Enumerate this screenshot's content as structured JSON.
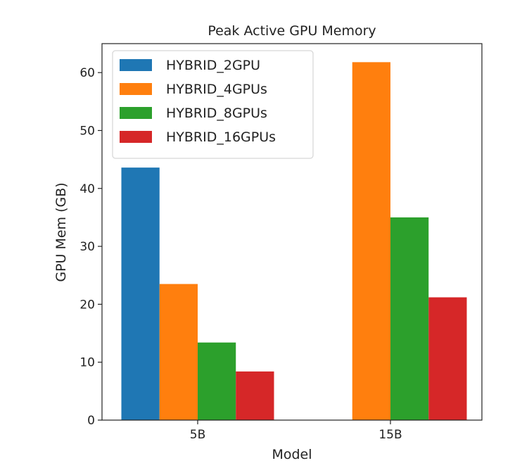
{
  "chart_data": {
    "type": "bar",
    "title": "Peak Active GPU Memory",
    "xlabel": "Model",
    "ylabel": "GPU Mem (GB)",
    "categories": [
      "5B",
      "15B"
    ],
    "ylim": [
      0,
      65
    ],
    "yticks": [
      0,
      10,
      20,
      30,
      40,
      50,
      60
    ],
    "grid": false,
    "legend_position": "top-left",
    "series": [
      {
        "name": "HYBRID_2GPU",
        "color": "#1f77b4",
        "values": [
          43.6,
          null
        ]
      },
      {
        "name": "HYBRID_4GPUs",
        "color": "#ff7f0e",
        "values": [
          23.5,
          61.8
        ]
      },
      {
        "name": "HYBRID_8GPUs",
        "color": "#2ca02c",
        "values": [
          13.4,
          35.0
        ]
      },
      {
        "name": "HYBRID_16GPUs",
        "color": "#d62728",
        "values": [
          8.4,
          21.2
        ]
      }
    ]
  }
}
